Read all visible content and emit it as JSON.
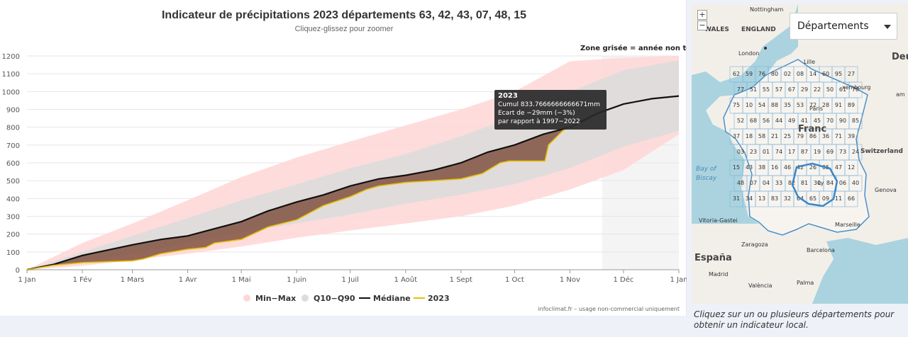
{
  "chart_data": {
    "type": "line",
    "title": "Indicateur de précipitations 2023 départements 63, 42, 43, 07, 48, 15",
    "subtitle": "Cliquez-glissez pour zoomer",
    "annotation": "Zone grisée = année non term",
    "xlabel": "",
    "ylabel": "",
    "ylim": [
      0,
      1200
    ],
    "yticks": [
      0,
      100,
      200,
      300,
      400,
      500,
      600,
      700,
      800,
      900,
      1000,
      1100,
      1200
    ],
    "xlim": [
      0,
      365
    ],
    "xticks": [
      {
        "day": 0,
        "label": "1 Jan"
      },
      {
        "day": 31,
        "label": "1 Fév"
      },
      {
        "day": 59,
        "label": "1 Mars"
      },
      {
        "day": 90,
        "label": "1 Avr"
      },
      {
        "day": 120,
        "label": "1 Mai"
      },
      {
        "day": 151,
        "label": "1 Juin"
      },
      {
        "day": 181,
        "label": "1 Juil"
      },
      {
        "day": 212,
        "label": "1 Août"
      },
      {
        "day": 243,
        "label": "1 Sept"
      },
      {
        "day": 273,
        "label": "1 Oct"
      },
      {
        "day": 304,
        "label": "1 Nov"
      },
      {
        "day": 334,
        "label": "1 Déc"
      },
      {
        "day": 365,
        "label": "1 Jan"
      }
    ],
    "unfinished_from_day": 322,
    "grid": true,
    "legend_position": "bottom",
    "series": [
      {
        "name": "Min-Max",
        "kind": "band",
        "color": "#ffd6d6",
        "x": [
          0,
          31,
          59,
          90,
          120,
          151,
          181,
          212,
          243,
          273,
          304,
          334,
          365
        ],
        "low": [
          0,
          22,
          55,
          90,
          130,
          180,
          220,
          260,
          300,
          360,
          450,
          560,
          760
        ],
        "high": [
          0,
          150,
          260,
          390,
          520,
          630,
          720,
          810,
          900,
          1000,
          1170,
          1190,
          1200
        ]
      },
      {
        "name": "Q10-Q90",
        "kind": "band",
        "color": "#dcdcdc",
        "x": [
          0,
          31,
          59,
          90,
          120,
          151,
          181,
          212,
          243,
          273,
          304,
          334,
          365
        ],
        "low": [
          0,
          40,
          90,
          150,
          210,
          260,
          310,
          370,
          420,
          480,
          570,
          690,
          780
        ],
        "high": [
          0,
          100,
          190,
          290,
          390,
          480,
          570,
          650,
          750,
          860,
          1000,
          1120,
          1175
        ]
      },
      {
        "name": "Médiane",
        "kind": "line",
        "color": "#111111",
        "x": [
          0,
          15,
          31,
          45,
          59,
          75,
          90,
          105,
          120,
          135,
          151,
          166,
          181,
          197,
          212,
          228,
          243,
          258,
          273,
          289,
          304,
          320,
          334,
          350,
          365
        ],
        "y": [
          0,
          30,
          80,
          110,
          140,
          170,
          190,
          230,
          270,
          330,
          380,
          420,
          470,
          510,
          530,
          560,
          600,
          660,
          700,
          760,
          800,
          880,
          930,
          960,
          975
        ]
      },
      {
        "name": "2023",
        "kind": "line",
        "color": "#e8c000",
        "x": [
          0,
          15,
          31,
          45,
          59,
          65,
          75,
          90,
          100,
          105,
          120,
          135,
          151,
          166,
          181,
          190,
          197,
          212,
          228,
          243,
          255,
          265,
          270,
          290,
          292,
          300,
          310
        ],
        "y": [
          0,
          25,
          40,
          45,
          50,
          60,
          90,
          115,
          125,
          150,
          170,
          240,
          280,
          360,
          410,
          450,
          470,
          490,
          500,
          510,
          540,
          600,
          610,
          610,
          700,
          780,
          833.77
        ]
      }
    ],
    "tooltip": {
      "title": "2023",
      "line1": "Cumul 833.7666666666671mm",
      "line2": "Ecart de −29mm (−3%)",
      "line3": "par rapport à 1997−2022"
    },
    "credit": "infoclimat.fr – usage non-commercial uniquement"
  },
  "legend": {
    "minmax": "Min−Max",
    "q10q90": "Q10−Q90",
    "median": "Médiane",
    "year": "2023"
  },
  "map": {
    "zoom_in": "+",
    "zoom_out": "−",
    "select_value": "Départements",
    "caption": "Cliquez sur un ou plusieurs départements pour obtenir un indicateur local.",
    "place_labels": {
      "nottingham": "Nottingham",
      "wales": "WALES",
      "england": "ENGLAND",
      "london": "London",
      "lille": "Lille",
      "luxembourg": "xembourg",
      "deutsch": "Deuts",
      "am": "am",
      "france": "Franc",
      "switzerland": "Switzerland",
      "bay": "Bay of",
      "biscay": "Biscay",
      "geneva": "Genova",
      "vitoria": "Vitoria-Gastei",
      "zaragoza": "Zaragoza",
      "marseille": "Marseille",
      "barcelona": "Barcelona",
      "espana": "España",
      "madrid": "Madrid",
      "valencia": "València",
      "palma": "Palma",
      "paris": "Paris",
      "lyon": "Ly"
    },
    "dept_numbers": [
      "62",
      "59",
      "76",
      "80",
      "02",
      "08",
      "14",
      "60",
      "95",
      "27",
      "77",
      "51",
      "55",
      "57",
      "67",
      "29",
      "22",
      "50",
      "61",
      "78",
      "75",
      "10",
      "54",
      "88",
      "35",
      "53",
      "72",
      "28",
      "91",
      "89",
      "52",
      "68",
      "56",
      "44",
      "49",
      "41",
      "45",
      "70",
      "90",
      "85",
      "37",
      "18",
      "58",
      "21",
      "25",
      "79",
      "86",
      "36",
      "71",
      "39",
      "03",
      "23",
      "01",
      "74",
      "17",
      "87",
      "19",
      "69",
      "73",
      "24",
      "15",
      "43",
      "38",
      "16",
      "46",
      "42",
      "26",
      "05",
      "47",
      "12",
      "48",
      "07",
      "04",
      "33",
      "82",
      "81",
      "30",
      "84",
      "06",
      "40",
      "31",
      "34",
      "13",
      "83",
      "32",
      "64",
      "65",
      "09",
      "11",
      "66"
    ]
  }
}
